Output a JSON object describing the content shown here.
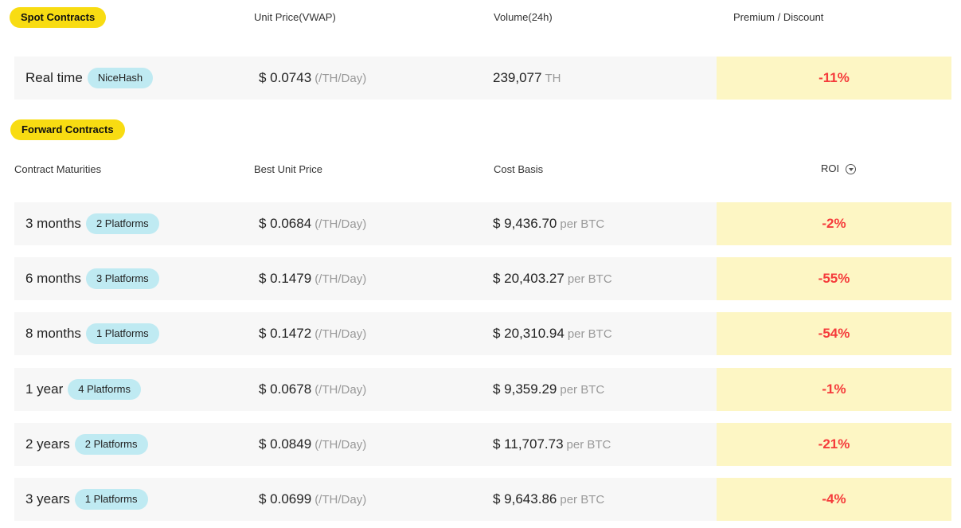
{
  "spot": {
    "badge": "Spot Contracts",
    "headers": {
      "price": "Unit Price(VWAP)",
      "volume": "Volume(24h)",
      "premium": "Premium / Discount"
    },
    "row": {
      "name": "Real time",
      "platform": "NiceHash",
      "price": "$ 0.0743",
      "price_unit": "(/TH/Day)",
      "volume": "239,077",
      "volume_unit": "TH",
      "premium": "-11%"
    }
  },
  "forward": {
    "badge": "Forward Contracts",
    "headers": {
      "maturity": "Contract Maturities",
      "price": "Best Unit Price",
      "cost": "Cost Basis",
      "roi": "ROI"
    },
    "rows": [
      {
        "name": "3 months",
        "platforms": "2 Platforms",
        "price": "$ 0.0684",
        "price_unit": "(/TH/Day)",
        "cost": "$ 9,436.70",
        "cost_unit": "per BTC",
        "roi": "-2%"
      },
      {
        "name": "6 months",
        "platforms": "3 Platforms",
        "price": "$ 0.1479",
        "price_unit": "(/TH/Day)",
        "cost": "$ 20,403.27",
        "cost_unit": "per BTC",
        "roi": "-55%"
      },
      {
        "name": "8 months",
        "platforms": "1 Platforms",
        "price": "$ 0.1472",
        "price_unit": "(/TH/Day)",
        "cost": "$ 20,310.94",
        "cost_unit": "per BTC",
        "roi": "-54%"
      },
      {
        "name": "1 year",
        "platforms": "4 Platforms",
        "price": "$ 0.0678",
        "price_unit": "(/TH/Day)",
        "cost": "$ 9,359.29",
        "cost_unit": "per BTC",
        "roi": "-1%"
      },
      {
        "name": "2 years",
        "platforms": "2 Platforms",
        "price": "$ 0.0849",
        "price_unit": "(/TH/Day)",
        "cost": "$ 11,707.73",
        "cost_unit": "per BTC",
        "roi": "-21%"
      },
      {
        "name": "3 years",
        "platforms": "1 Platforms",
        "price": "$ 0.0699",
        "price_unit": "(/TH/Day)",
        "cost": "$ 9,643.86",
        "cost_unit": "per BTC",
        "roi": "-4%"
      }
    ]
  },
  "colors": {
    "section_badge": "#f8dc12",
    "platform_badge": "#bfeaf2",
    "pct_bg": "#fdf6c4",
    "pct_text": "#f53b3b"
  }
}
